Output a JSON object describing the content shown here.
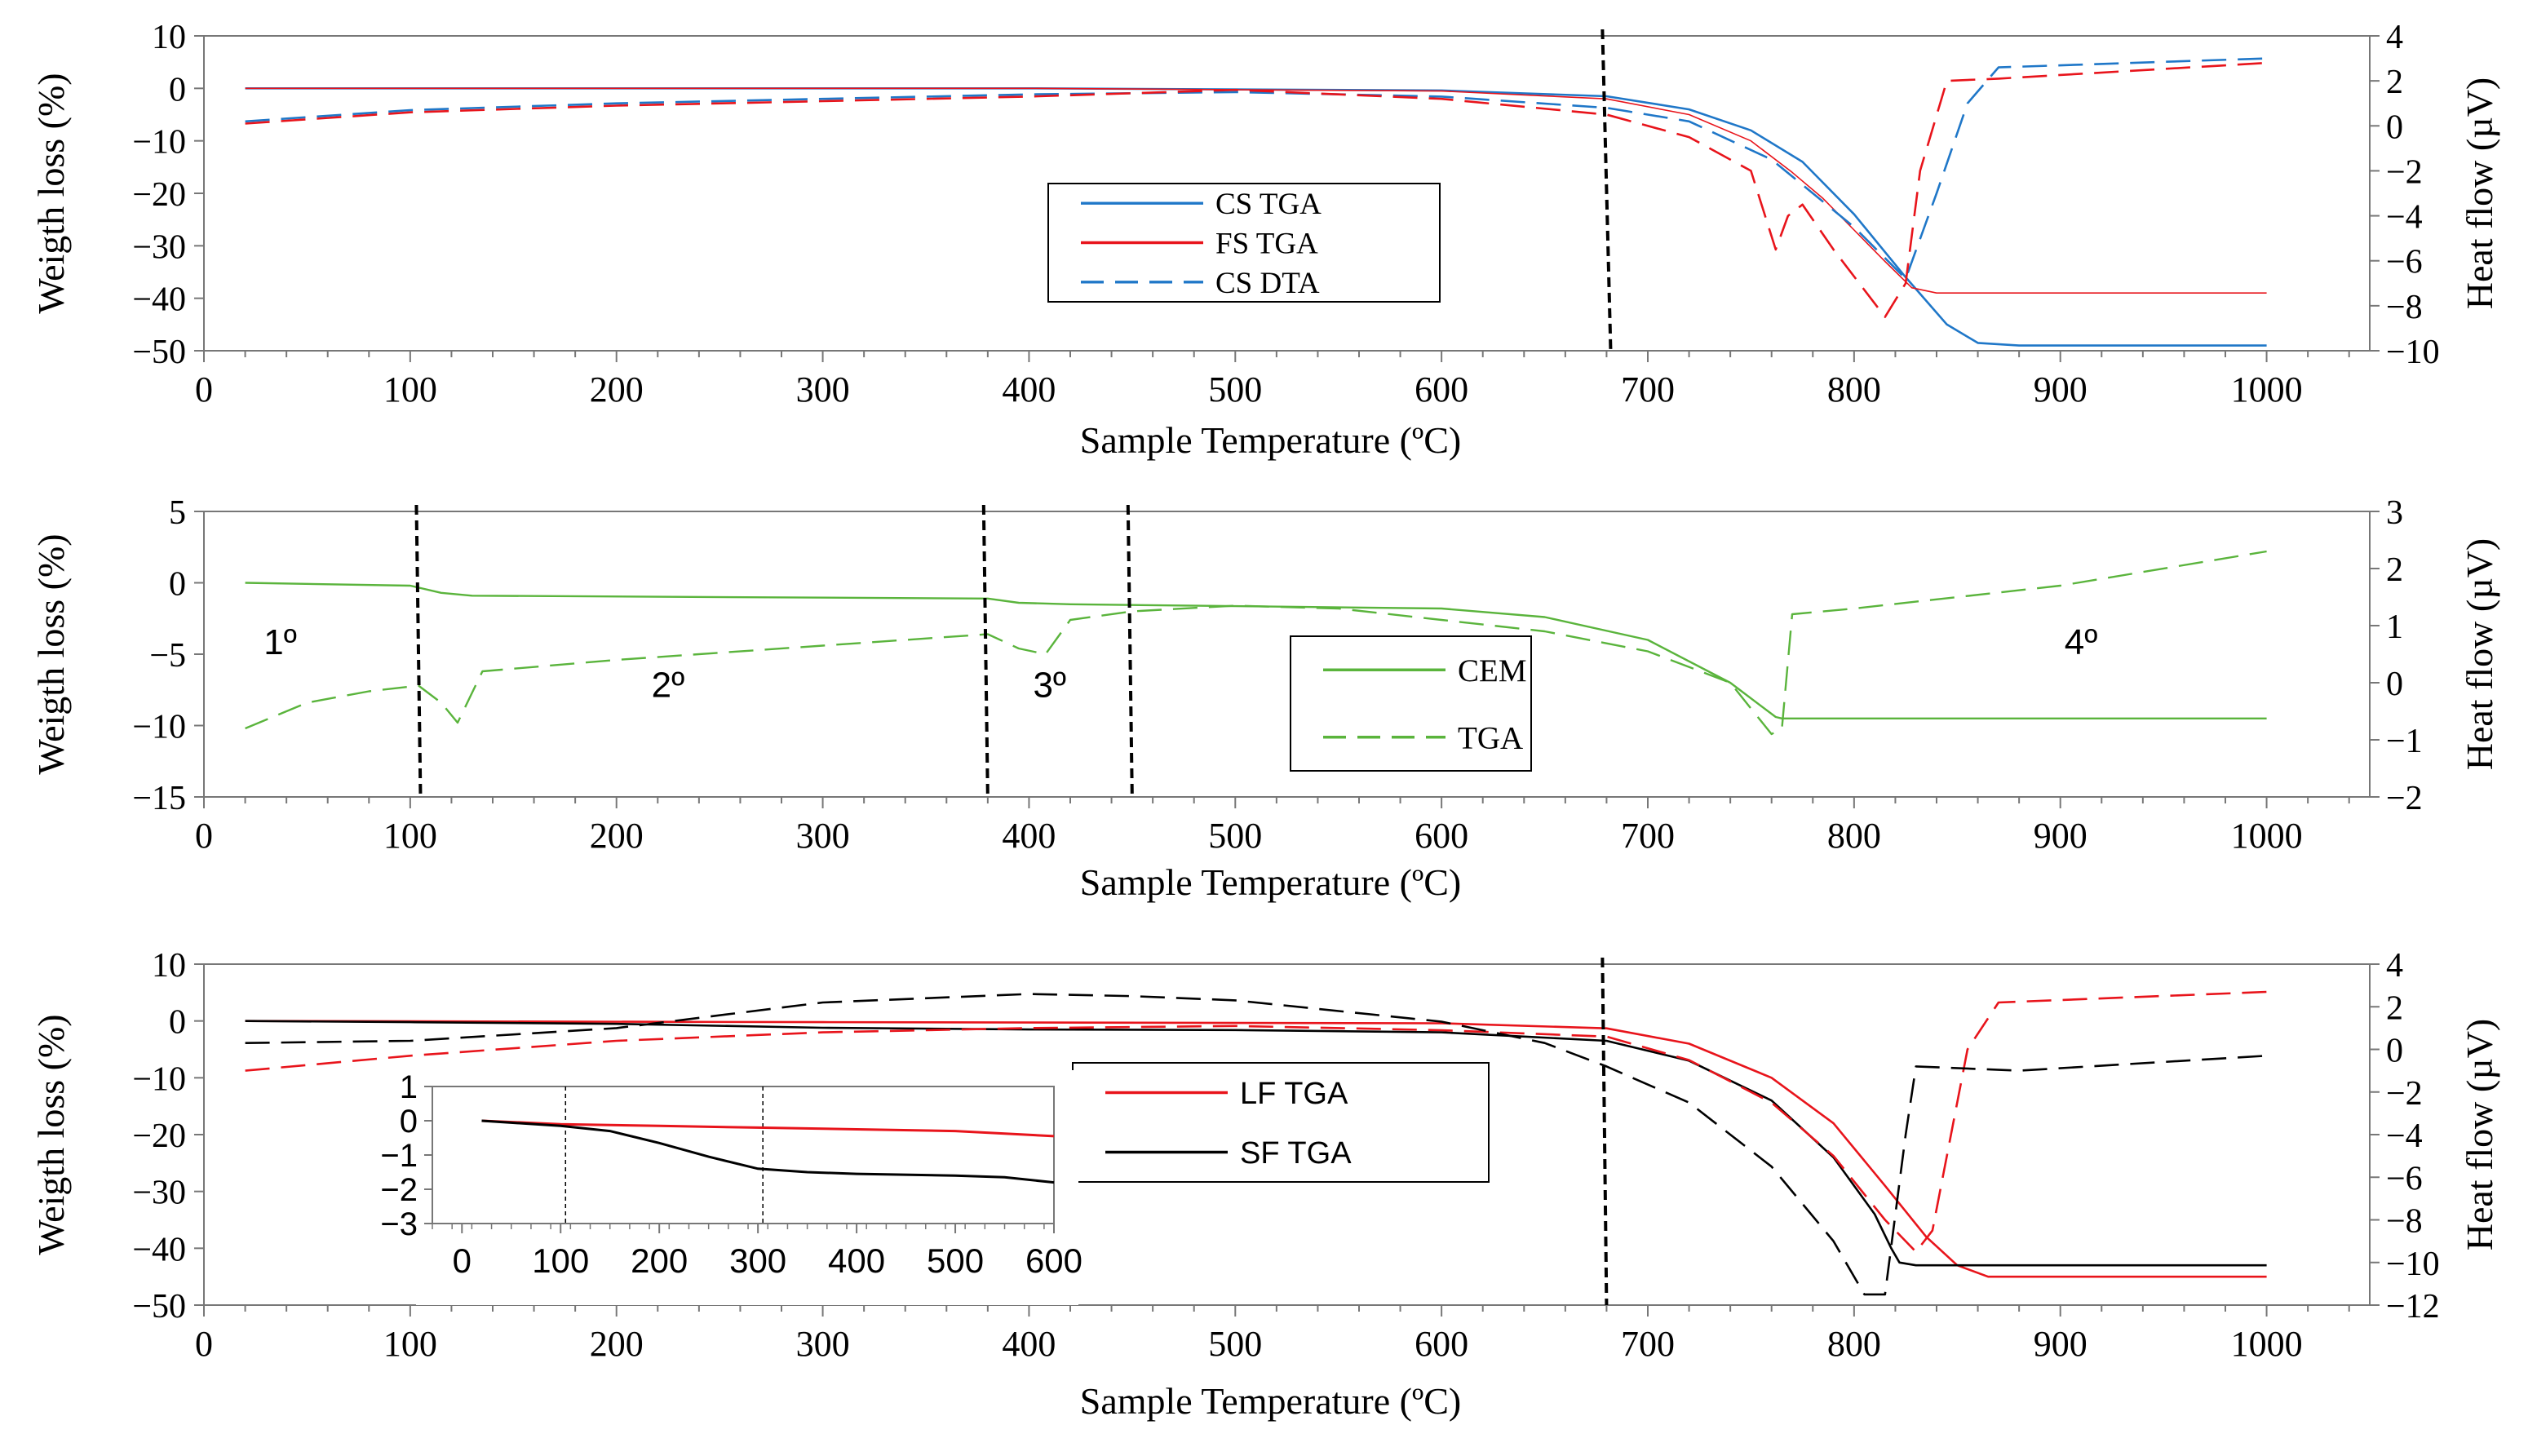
{
  "colors": {
    "blue": "#1f77c8",
    "red": "#e8141b",
    "green": "#5ab43c",
    "black": "#000000",
    "axis": "#777777"
  },
  "chart_data": [
    {
      "type": "line",
      "panel": "top",
      "xlabel": "Sample Temperature (ºC)",
      "ylabel": "Weigth loss (%)",
      "y2label": "Heat flow (µV)",
      "xlim": [
        0,
        1050
      ],
      "ylim": [
        -50,
        10
      ],
      "y2lim": [
        -10,
        4
      ],
      "xticks": [
        0,
        100,
        200,
        300,
        400,
        500,
        600,
        700,
        800,
        900,
        1000
      ],
      "yticks": [
        10,
        0,
        -10,
        -20,
        -30,
        -40,
        -50
      ],
      "y2ticks": [
        4,
        2,
        0,
        -2,
        -4,
        -6,
        -8,
        -10
      ],
      "vlines": [
        {
          "x1": 678,
          "x2": 682
        }
      ],
      "legend_position": "center",
      "legend": [
        {
          "name": "CS TGA",
          "color": "#1f77c8",
          "dash": "solid"
        },
        {
          "name": "FS TGA",
          "color": "#e8141b",
          "dash": "solid"
        },
        {
          "name": "CS DTA",
          "color": "#1f77c8",
          "dash": "dashed"
        }
      ],
      "series": [
        {
          "name": "CS TGA",
          "axis": "left",
          "color": "#1f77c8",
          "dash": "solid",
          "width": 2.6,
          "x": [
            20,
            200,
            400,
            600,
            680,
            720,
            750,
            775,
            800,
            825,
            845,
            860,
            880,
            1000
          ],
          "y": [
            0,
            0,
            0,
            -0.4,
            -1.5,
            -4,
            -8,
            -14,
            -24,
            -36,
            -45,
            -48.5,
            -49,
            -49
          ]
        },
        {
          "name": "FS TGA",
          "axis": "left",
          "color": "#e8141b",
          "dash": "solid",
          "width": 1.6,
          "x": [
            20,
            200,
            400,
            600,
            680,
            720,
            750,
            770,
            785,
            800,
            815,
            828,
            840,
            1000
          ],
          "y": [
            0,
            0,
            0,
            -0.5,
            -2,
            -5,
            -10,
            -16,
            -21,
            -27,
            -33,
            -38,
            -39,
            -39
          ]
        },
        {
          "name": "CS DTA",
          "axis": "right",
          "color": "#1f77c8",
          "dash": "dashed",
          "width": 2.6,
          "x": [
            20,
            100,
            200,
            300,
            400,
            500,
            600,
            680,
            720,
            760,
            800,
            825,
            840,
            855,
            870,
            1000
          ],
          "y": [
            0.2,
            0.7,
            1,
            1.2,
            1.4,
            1.5,
            1.3,
            0.8,
            0.2,
            -1.5,
            -4.5,
            -6.8,
            -3,
            1,
            2.6,
            3
          ]
        },
        {
          "name": "FS DTA",
          "axis": "right",
          "color": "#e8141b",
          "dash": "dashed",
          "width": 2.6,
          "x": [
            20,
            100,
            200,
            300,
            400,
            500,
            600,
            680,
            720,
            750,
            762,
            768,
            775,
            790,
            815,
            825,
            832,
            845,
            870,
            1000
          ],
          "y": [
            0.1,
            0.6,
            0.9,
            1.1,
            1.3,
            1.6,
            1.2,
            0.5,
            -0.5,
            -2,
            -5.5,
            -4,
            -3.5,
            -5.5,
            -8.5,
            -7,
            -2,
            2,
            2.1,
            2.8
          ]
        }
      ]
    },
    {
      "type": "line",
      "panel": "middle",
      "xlabel": "Sample Temperature (ºC)",
      "ylabel": "Weigth loss (%)",
      "y2label": "Heat flow (µV)",
      "xlim": [
        0,
        1050
      ],
      "ylim": [
        -15,
        5
      ],
      "y2lim": [
        -2,
        3
      ],
      "xticks": [
        0,
        100,
        200,
        300,
        400,
        500,
        600,
        700,
        800,
        900,
        1000
      ],
      "yticks": [
        5,
        0,
        -5,
        -10,
        -15
      ],
      "y2ticks": [
        3,
        2,
        1,
        0,
        -1,
        -2
      ],
      "vlines": [
        {
          "x1": 103,
          "x2": 105
        },
        {
          "x1": 378,
          "x2": 380
        },
        {
          "x1": 448,
          "x2": 450
        }
      ],
      "annotations": [
        {
          "text": "1º",
          "x": 37,
          "y": -5
        },
        {
          "text": "2º",
          "x": 225,
          "y": -8
        },
        {
          "text": "3º",
          "x": 410,
          "y": -8
        },
        {
          "text": "4º",
          "x": 910,
          "y": -5
        }
      ],
      "legend_position": "center",
      "legend": [
        {
          "name": "CEM",
          "color": "#5ab43c",
          "dash": "solid"
        },
        {
          "name": "TGA",
          "color": "#5ab43c",
          "dash": "dashed"
        }
      ],
      "series": [
        {
          "name": "CEM",
          "axis": "left",
          "color": "#5ab43c",
          "dash": "solid",
          "width": 2.4,
          "x": [
            20,
            100,
            115,
            130,
            380,
            395,
            420,
            600,
            650,
            700,
            740,
            762,
            765,
            1000
          ],
          "y": [
            0,
            -0.2,
            -0.7,
            -0.9,
            -1.1,
            -1.4,
            -1.5,
            -1.8,
            -2.4,
            -4,
            -7,
            -9.4,
            -9.5,
            -9.5
          ]
        },
        {
          "name": "TGA",
          "axis": "right",
          "color": "#5ab43c",
          "dash": "dashed",
          "width": 2.4,
          "x": [
            20,
            50,
            80,
            104,
            115,
            123,
            135,
            200,
            300,
            380,
            395,
            408,
            420,
            450,
            500,
            550,
            600,
            650,
            700,
            740,
            760,
            765,
            770,
            800,
            900,
            1000
          ],
          "y": [
            -0.8,
            -0.35,
            -0.15,
            -0.05,
            -0.35,
            -0.7,
            0.2,
            0.4,
            0.65,
            0.85,
            0.6,
            0.5,
            1.1,
            1.25,
            1.35,
            1.3,
            1.1,
            0.9,
            0.55,
            0,
            -0.9,
            -0.8,
            1.2,
            1.3,
            1.7,
            2.3
          ]
        }
      ]
    },
    {
      "type": "line",
      "panel": "bottom",
      "xlabel": "Sample Temperature (ºC)",
      "ylabel": "Weigth loss (%)",
      "y2label": "Heat flow (µV)",
      "xlim": [
        0,
        1050
      ],
      "ylim": [
        -50,
        10
      ],
      "y2lim": [
        -12,
        4
      ],
      "xticks": [
        0,
        100,
        200,
        300,
        400,
        500,
        600,
        700,
        800,
        900,
        1000
      ],
      "yticks": [
        10,
        0,
        -10,
        -20,
        -30,
        -40,
        -50
      ],
      "y2ticks": [
        4,
        2,
        0,
        -2,
        -4,
        -6,
        -8,
        -10,
        -12
      ],
      "vlines": [
        {
          "x1": 678,
          "x2": 680
        }
      ],
      "legend_position": "center",
      "legend": [
        {
          "name": "LF TGA",
          "color": "#e8141b",
          "dash": "solid"
        },
        {
          "name": "SF TGA",
          "color": "#000000",
          "dash": "solid"
        }
      ],
      "series": [
        {
          "name": "LF TGA",
          "axis": "left",
          "color": "#e8141b",
          "dash": "solid",
          "width": 2.6,
          "x": [
            20,
            300,
            600,
            680,
            720,
            760,
            790,
            815,
            835,
            850,
            865,
            1000
          ],
          "y": [
            0,
            -0.2,
            -0.4,
            -1.3,
            -4,
            -10,
            -18,
            -29,
            -38,
            -43,
            -45,
            -45
          ]
        },
        {
          "name": "SF TGA",
          "axis": "left",
          "color": "#000000",
          "dash": "solid",
          "width": 2.6,
          "x": [
            20,
            100,
            200,
            300,
            400,
            500,
            600,
            680,
            720,
            760,
            790,
            810,
            818,
            822,
            830,
            1000
          ],
          "y": [
            0,
            -0.2,
            -0.5,
            -1.2,
            -1.5,
            -1.6,
            -2,
            -3.5,
            -7,
            -14,
            -24,
            -34,
            -40,
            -42.5,
            -43,
            -43
          ]
        },
        {
          "name": "LF DTA",
          "axis": "right",
          "color": "#e8141b",
          "dash": "dashed",
          "width": 2.6,
          "x": [
            20,
            100,
            200,
            300,
            400,
            500,
            600,
            680,
            720,
            760,
            790,
            815,
            830,
            838,
            855,
            870,
            1000
          ],
          "y": [
            -1,
            -0.3,
            0.4,
            0.8,
            1,
            1.1,
            0.9,
            0.6,
            -0.5,
            -2.5,
            -5,
            -8,
            -9.5,
            -8.5,
            0,
            2.2,
            2.7
          ]
        },
        {
          "name": "SF DTA",
          "axis": "right",
          "color": "#000000",
          "dash": "dashed",
          "width": 2.6,
          "x": [
            20,
            100,
            200,
            300,
            400,
            450,
            500,
            600,
            650,
            680,
            720,
            760,
            790,
            805,
            815,
            825,
            830,
            880,
            1000
          ],
          "y": [
            0.3,
            0.4,
            1,
            2.2,
            2.6,
            2.5,
            2.3,
            1.3,
            0.3,
            -0.8,
            -2.5,
            -5.5,
            -9,
            -11.5,
            -11.5,
            -4,
            -0.8,
            -1,
            -0.3
          ]
        }
      ],
      "inset": {
        "type": "line",
        "xlim": [
          -30,
          600
        ],
        "ylim": [
          -3,
          1
        ],
        "xticks": [
          0,
          100,
          200,
          300,
          400,
          500,
          600
        ],
        "yticks": [
          1,
          0,
          -1,
          -2,
          -3
        ],
        "vlines": [
          105,
          305
        ],
        "series": [
          {
            "name": "LF TGA",
            "color": "#e8141b",
            "x": [
              20,
              100,
              200,
              300,
              400,
              500,
              600
            ],
            "y": [
              0,
              -0.1,
              -0.15,
              -0.2,
              -0.25,
              -0.3,
              -0.45
            ]
          },
          {
            "name": "SF TGA",
            "color": "#000000",
            "x": [
              20,
              100,
              150,
              200,
              250,
              300,
              350,
              400,
              500,
              550,
              600
            ],
            "y": [
              0,
              -0.15,
              -0.3,
              -0.65,
              -1.05,
              -1.4,
              -1.5,
              -1.55,
              -1.6,
              -1.65,
              -1.8
            ]
          }
        ]
      }
    }
  ]
}
